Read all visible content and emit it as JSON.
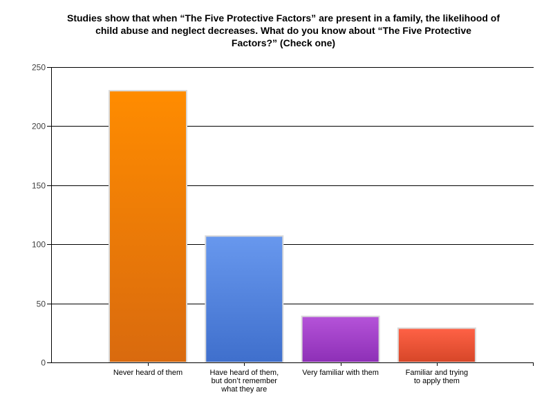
{
  "chart_data": {
    "type": "bar",
    "title_lines": [
      "Studies show that when “The Five Protective Factors” are present in a family, the likelihood of",
      "child abuse and neglect decreases. What do you know about “The Five Protective",
      "Factors?” (Check one)"
    ],
    "categories": [
      [
        "Never heard of them"
      ],
      [
        "Have heard of them,",
        "but don’t remember",
        "what they are"
      ],
      [
        "Very familiar with them"
      ],
      [
        "Familiar and trying",
        "to apply them"
      ]
    ],
    "values": [
      230,
      107,
      39,
      29
    ],
    "ylim": [
      0,
      250
    ],
    "yticks": [
      0,
      50,
      100,
      150,
      200,
      250
    ],
    "grid": true,
    "legend": false,
    "colors": [
      {
        "top": "#ff8c00",
        "bottom": "#d96a0e"
      },
      {
        "top": "#6898ee",
        "bottom": "#3f6fcc"
      },
      {
        "top": "#b553d9",
        "bottom": "#8d2fb6"
      },
      {
        "top": "#ff6246",
        "bottom": "#d64628"
      }
    ]
  }
}
